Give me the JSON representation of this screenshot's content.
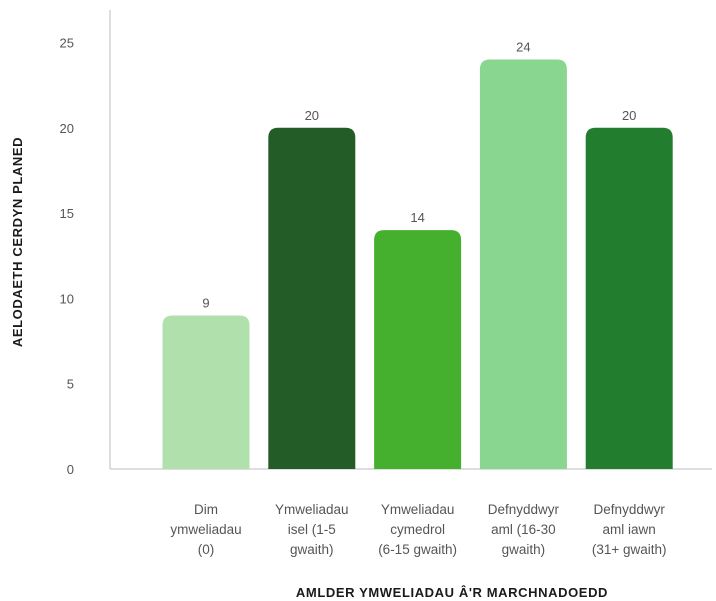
{
  "chart_data": {
    "type": "bar",
    "xlabel": "AMLDER YMWELIADAU Â'R MARCHNADOEDD",
    "ylabel": "AELODAETH CERDYN PLANED",
    "ylim": [
      0,
      25
    ],
    "yticks": [
      0,
      5,
      10,
      15,
      20,
      25
    ],
    "grid": false,
    "categories": [
      [
        "Dim",
        "ymweliadau",
        "(0)"
      ],
      [
        "Ymweliadau",
        "isel (1-5",
        "gwaith)"
      ],
      [
        "Ymweliadau",
        "cymedrol",
        "(6-15 gwaith)"
      ],
      [
        "Defnyddwyr",
        "aml (16-30",
        "gwaith)"
      ],
      [
        "Defnyddwyr",
        "aml iawn",
        "(31+ gwaith)"
      ]
    ],
    "values": [
      9,
      20,
      14,
      24,
      20
    ],
    "data_labels": [
      "9",
      "20",
      "14",
      "24",
      "20"
    ],
    "colors": [
      "#b0e0ac",
      "#245c28",
      "#45b02e",
      "#88d690",
      "#227d2e"
    ]
  }
}
